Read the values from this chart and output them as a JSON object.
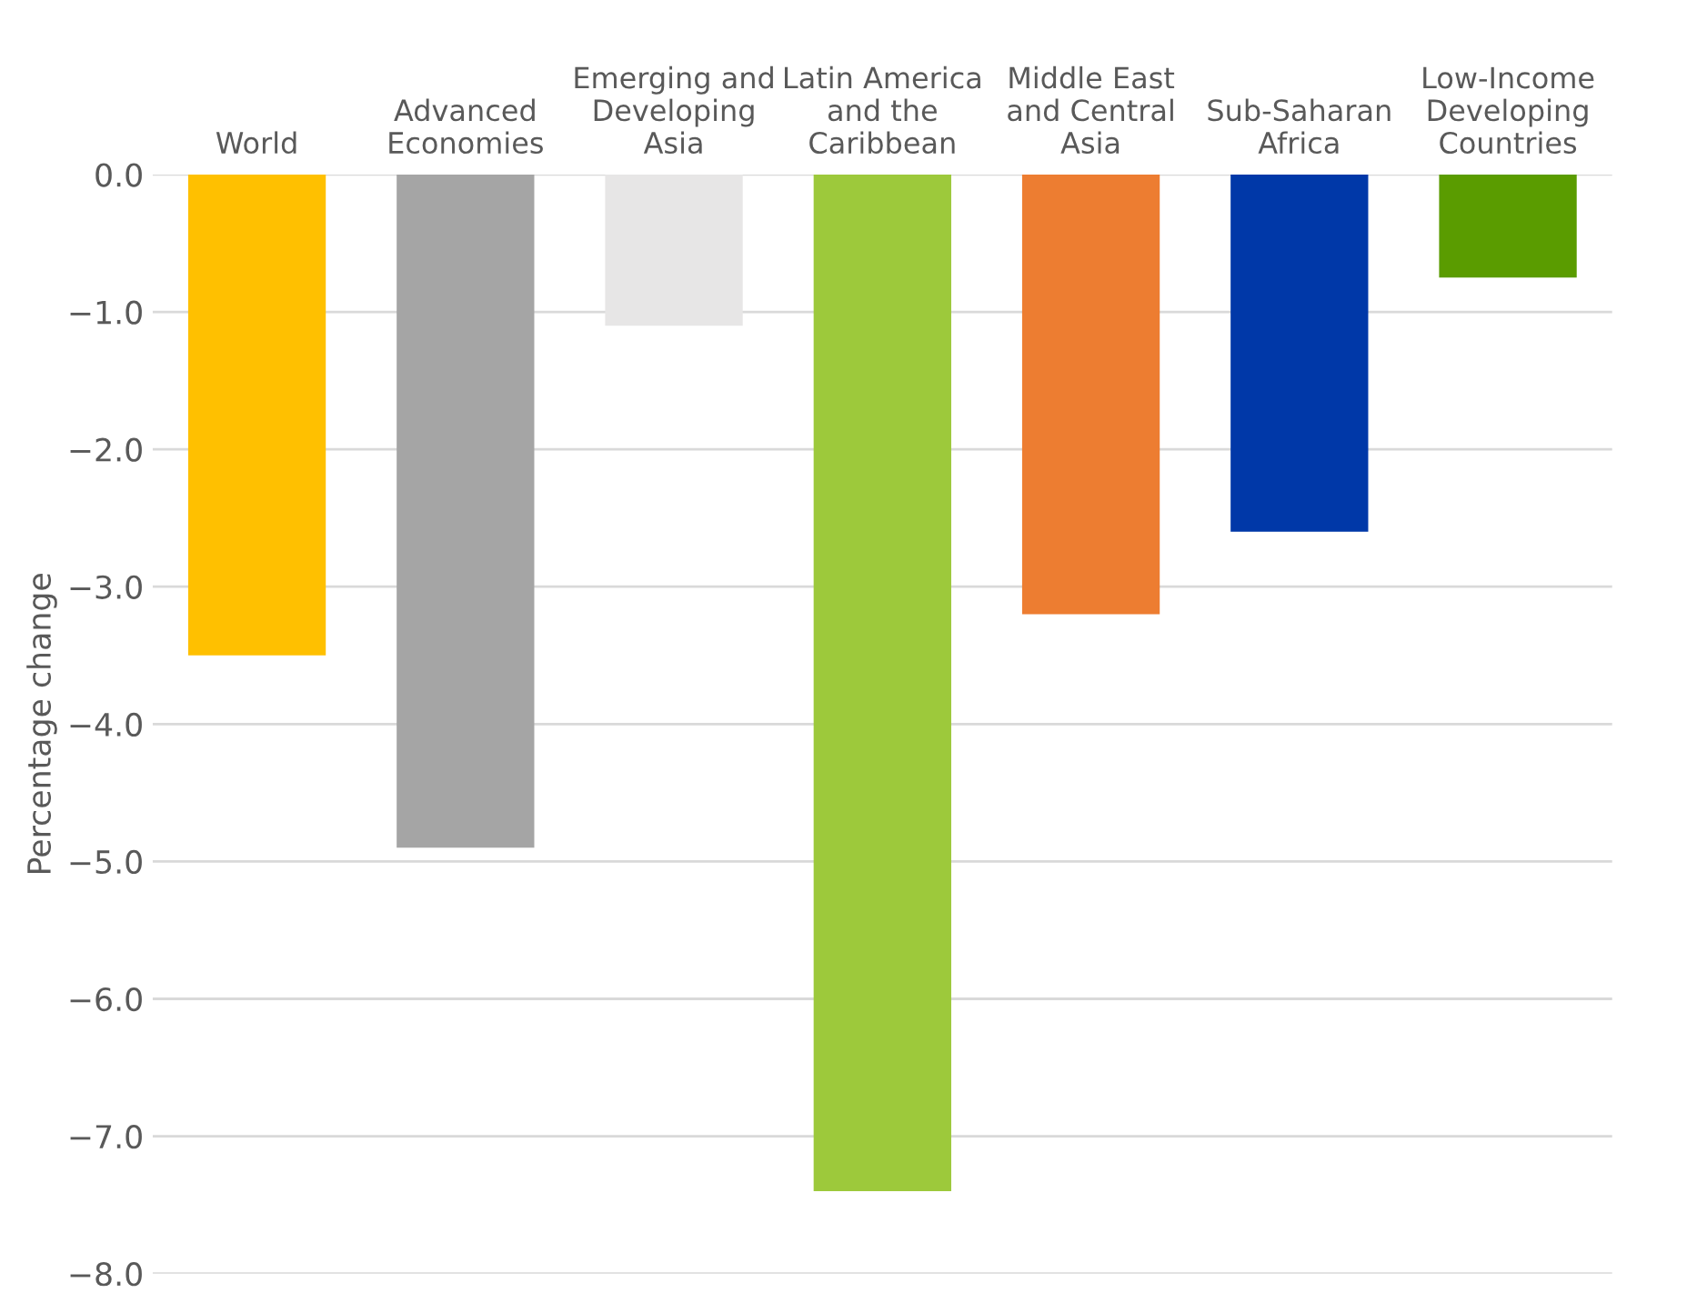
{
  "chart_data": {
    "type": "bar",
    "ylabel": "Percentage change",
    "categories": [
      "World",
      "Advanced\nEconomies",
      "Emerging and\nDeveloping\nAsia",
      "Latin America\nand the\nCaribbean",
      "Middle East\nand Central\nAsia",
      "Sub-Saharan\nAfrica",
      "Low-Income\nDeveloping\nCountries"
    ],
    "values": [
      -3.5,
      -4.9,
      -1.1,
      -7.4,
      -3.2,
      -2.6,
      -0.75
    ],
    "colors": [
      "#ffc000",
      "#a5a5a5",
      "#e7e6e6",
      "#9dc93b",
      "#ed7d31",
      "#0038a8",
      "#5a9c00"
    ],
    "ylim": [
      -8.0,
      0.0
    ],
    "yticks": [
      {
        "value": 0,
        "label": "0.0"
      },
      {
        "value": -1,
        "label": "−1.0"
      },
      {
        "value": -2,
        "label": "−2.0"
      },
      {
        "value": -3,
        "label": "−3.0"
      },
      {
        "value": -4,
        "label": "−4.0"
      },
      {
        "value": -5,
        "label": "−5.0"
      },
      {
        "value": -6,
        "label": "−6.0"
      },
      {
        "value": -7,
        "label": "−7.0"
      },
      {
        "value": -8,
        "label": "−8.0"
      }
    ],
    "grid": "y"
  }
}
